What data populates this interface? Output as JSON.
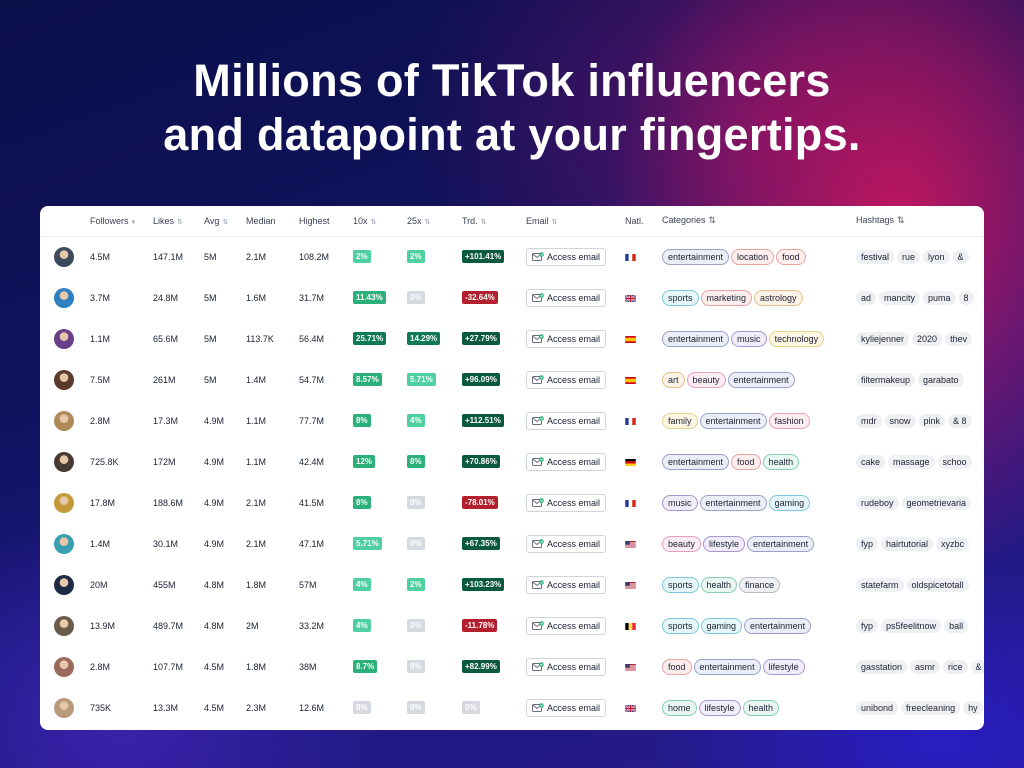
{
  "headline": {
    "line1": "Millions of TikTok influencers",
    "line2": "and datapoint at your fingertips."
  },
  "table": {
    "columns": {
      "followers": "Followers",
      "likes": "Likes",
      "avg": "Avg",
      "median": "Median",
      "highest": "Highest",
      "x10": "10x",
      "x25": "25x",
      "trend": "Trd.",
      "email": "Email",
      "nationality": "Natl.",
      "categories": "Categories",
      "hashtags": "Hashtags"
    },
    "rows": [
      {
        "avatar_color": "#3d4a5c",
        "followers": "4.5M",
        "likes": "147.1M",
        "avg": "5M",
        "median": "2.1M",
        "highest": "108.2M",
        "x10": "2%",
        "x25": "2%",
        "trend": "+101.41%",
        "trend_dir": "up",
        "email_label": "Access email",
        "flag": "fr",
        "categories": [
          "entertainment",
          "location",
          "food"
        ],
        "hashtags": [
          "festival",
          "rue",
          "lyon",
          "&"
        ]
      },
      {
        "avatar_color": "#2d7fc2",
        "followers": "3.7M",
        "likes": "24.8M",
        "avg": "5M",
        "median": "1.6M",
        "highest": "31.7M",
        "x10": "11.43%",
        "x25": "0%",
        "trend": "-32.64%",
        "trend_dir": "down",
        "email_label": "Access email",
        "flag": "gb",
        "categories": [
          "sports",
          "marketing",
          "astrology"
        ],
        "hashtags": [
          "ad",
          "mancity",
          "puma",
          "8"
        ]
      },
      {
        "avatar_color": "#6a3f8a",
        "followers": "1.1M",
        "likes": "65.6M",
        "avg": "5M",
        "median": "113.7K",
        "highest": "56.4M",
        "x10": "25.71%",
        "x25": "14.29%",
        "trend": "+27.79%",
        "trend_dir": "up",
        "email_label": "Access email",
        "flag": "es",
        "categories": [
          "entertainment",
          "music",
          "technology"
        ],
        "hashtags": [
          "kyliejenner",
          "2020",
          "thev"
        ]
      },
      {
        "avatar_color": "#5a3a2a",
        "followers": "7.5M",
        "likes": "261M",
        "avg": "5M",
        "median": "1.4M",
        "highest": "54.7M",
        "x10": "8.57%",
        "x25": "5.71%",
        "trend": "+96.09%",
        "trend_dir": "up",
        "email_label": "Access email",
        "flag": "es",
        "categories": [
          "art",
          "beauty",
          "entertainment"
        ],
        "hashtags": [
          "filtermakeup",
          "garabato"
        ]
      },
      {
        "avatar_color": "#b08a5a",
        "followers": "2.8M",
        "likes": "17.3M",
        "avg": "4.9M",
        "median": "1.1M",
        "highest": "77.7M",
        "x10": "8%",
        "x25": "4%",
        "trend": "+112.51%",
        "trend_dir": "up",
        "email_label": "Access email",
        "flag": "fr",
        "categories": [
          "family",
          "entertainment",
          "fashion"
        ],
        "hashtags": [
          "mdr",
          "snow",
          "pink",
          "& 8"
        ]
      },
      {
        "avatar_color": "#4a3b32",
        "followers": "725.8K",
        "likes": "172M",
        "avg": "4.9M",
        "median": "1.1M",
        "highest": "42.4M",
        "x10": "12%",
        "x25": "8%",
        "trend": "+70.86%",
        "trend_dir": "up",
        "email_label": "Access email",
        "flag": "de",
        "categories": [
          "entertainment",
          "food",
          "health"
        ],
        "hashtags": [
          "cake",
          "massage",
          "schoo"
        ]
      },
      {
        "avatar_color": "#c49a3a",
        "followers": "17.8M",
        "likes": "188.6M",
        "avg": "4.9M",
        "median": "2.1M",
        "highest": "41.5M",
        "x10": "8%",
        "x25": "0%",
        "trend": "-78.01%",
        "trend_dir": "down",
        "email_label": "Access email",
        "flag": "fr",
        "categories": [
          "music",
          "entertainment",
          "gaming"
        ],
        "hashtags": [
          "rudeboy",
          "geometrievaria"
        ]
      },
      {
        "avatar_color": "#3aa0b0",
        "followers": "1.4M",
        "likes": "30.1M",
        "avg": "4.9M",
        "median": "2.1M",
        "highest": "47.1M",
        "x10": "5.71%",
        "x25": "0%",
        "trend": "+67.35%",
        "trend_dir": "up",
        "email_label": "Access email",
        "flag": "us",
        "categories": [
          "beauty",
          "lifestyle",
          "entertainment"
        ],
        "hashtags": [
          "fyp",
          "hairtutorial",
          "xyzbc"
        ]
      },
      {
        "avatar_color": "#1e2a44",
        "followers": "20M",
        "likes": "455M",
        "avg": "4.8M",
        "median": "1.8M",
        "highest": "57M",
        "x10": "4%",
        "x25": "2%",
        "trend": "+103.23%",
        "trend_dir": "up",
        "email_label": "Access email",
        "flag": "us",
        "categories": [
          "sports",
          "health",
          "finance"
        ],
        "hashtags": [
          "statefarm",
          "oldspicetotall"
        ]
      },
      {
        "avatar_color": "#6a5a4a",
        "followers": "13.9M",
        "likes": "489.7M",
        "avg": "4.8M",
        "median": "2M",
        "highest": "33.2M",
        "x10": "4%",
        "x25": "0%",
        "trend": "-11.78%",
        "trend_dir": "down",
        "email_label": "Access email",
        "flag": "be",
        "categories": [
          "sports",
          "gaming",
          "entertainment"
        ],
        "hashtags": [
          "fyp",
          "ps5feelitnow",
          "ball"
        ]
      },
      {
        "avatar_color": "#9a6a5a",
        "followers": "2.8M",
        "likes": "107.7M",
        "avg": "4.5M",
        "median": "1.8M",
        "highest": "38M",
        "x10": "8.7%",
        "x25": "0%",
        "trend": "+82.99%",
        "trend_dir": "up",
        "email_label": "Access email",
        "flag": "us",
        "categories": [
          "food",
          "entertainment",
          "lifestyle"
        ],
        "hashtags": [
          "gasstation",
          "asmr",
          "rice",
          "&"
        ]
      },
      {
        "avatar_color": "#b89a7a",
        "followers": "735K",
        "likes": "13.3M",
        "avg": "4.5M",
        "median": "2.3M",
        "highest": "12.6M",
        "x10": "0%",
        "x25": "0%",
        "trend": "0%",
        "trend_dir": "none",
        "email_label": "Access email",
        "flag": "gb",
        "categories": [
          "home",
          "lifestyle",
          "health"
        ],
        "hashtags": [
          "unibond",
          "freecleaning",
          "hy"
        ]
      }
    ]
  },
  "colors": {
    "pct_light": "#4fd0a0",
    "pct_mid": "#2bb07a",
    "pct_dark": "#0f7a55",
    "pct_zero": "#d6d9df",
    "trend_up": "#0b5a3e",
    "trend_down": "#b3202d"
  },
  "category_colors": {
    "entertainment": {
      "bg": "#eceef7",
      "border": "#9aa0c8"
    },
    "location": {
      "bg": "#fdeeee",
      "border": "#e8a2a2"
    },
    "food": {
      "bg": "#fdeeee",
      "border": "#e8a2a2"
    },
    "sports": {
      "bg": "#e6f6fb",
      "border": "#7cc7dd"
    },
    "marketing": {
      "bg": "#fdeeee",
      "border": "#e8a2a2"
    },
    "astrology": {
      "bg": "#fdf2e6",
      "border": "#e8c08a"
    },
    "music": {
      "bg": "#f0ecf8",
      "border": "#a896cf"
    },
    "technology": {
      "bg": "#fdf6e3",
      "border": "#e6cf86"
    },
    "art": {
      "bg": "#fdf2e6",
      "border": "#e8c08a"
    },
    "beauty": {
      "bg": "#fcecf4",
      "border": "#e6a0c2"
    },
    "family": {
      "bg": "#fdf6e3",
      "border": "#e6cf86"
    },
    "fashion": {
      "bg": "#fdeef2",
      "border": "#e6a0b0"
    },
    "health": {
      "bg": "#e8f7f2",
      "border": "#86cdb6"
    },
    "gaming": {
      "bg": "#e6f6fb",
      "border": "#7cc7dd"
    },
    "lifestyle": {
      "bg": "#f0ecf8",
      "border": "#a896cf"
    },
    "finance": {
      "bg": "#eef0f3",
      "border": "#b6bac4"
    },
    "home": {
      "bg": "#e8f7f2",
      "border": "#86cdb6"
    }
  }
}
